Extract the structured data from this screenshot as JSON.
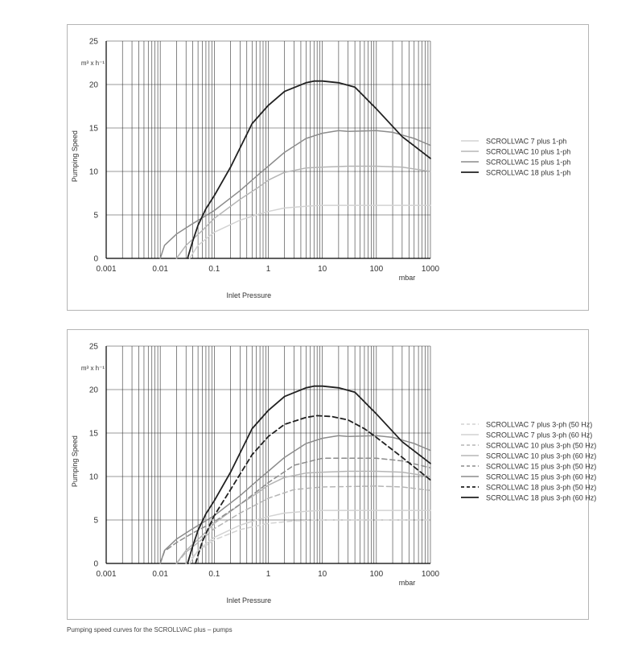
{
  "caption": "Pumping speed curves for the SCROLLVAC plus – pumps",
  "colors": {
    "s7": "#d2d2d2",
    "s10": "#b5b5b5",
    "s15": "#8c8c8c",
    "s18": "#202020",
    "grid": "#333333",
    "frame": "#b5b5b5"
  },
  "chart_data": [
    {
      "type": "line",
      "xscale": "log",
      "xlim": [
        0.001,
        1000
      ],
      "ylim": [
        0,
        25
      ],
      "x_ticks": [
        0.001,
        0.01,
        0.1,
        1,
        10,
        100,
        1000
      ],
      "x_tick_labels": [
        "0.001",
        "0.01",
        "0.1",
        "1",
        "10",
        "100",
        "1000"
      ],
      "y_ticks": [
        0,
        5,
        10,
        15,
        20,
        25
      ],
      "y_tick_labels": [
        "0",
        "5",
        "10",
        "15",
        "20",
        "25"
      ],
      "xlabel": "Inlet Pressure",
      "x_unit": "mbar",
      "ylabel": "Pumping Speed",
      "y_unit": "m³ x h⁻¹",
      "grid": true,
      "legend_position": "right",
      "series": [
        {
          "name": "SCROLLVAC 7 plus 1-ph",
          "color_key": "s7",
          "dash": "solid",
          "points": [
            [
              0.035,
              0
            ],
            [
              0.05,
              1.5
            ],
            [
              0.1,
              3
            ],
            [
              0.3,
              4.4
            ],
            [
              0.6,
              5
            ],
            [
              1,
              5.4
            ],
            [
              2,
              5.8
            ],
            [
              5,
              6
            ],
            [
              10,
              6.1
            ],
            [
              100,
              6.1
            ],
            [
              1000,
              6.1
            ]
          ]
        },
        {
          "name": "SCROLLVAC 10 plus 1-ph",
          "color_key": "s10",
          "dash": "solid",
          "points": [
            [
              0.02,
              0
            ],
            [
              0.03,
              1.5
            ],
            [
              0.06,
              3.2
            ],
            [
              0.1,
              4.6
            ],
            [
              0.3,
              6.8
            ],
            [
              0.7,
              8.3
            ],
            [
              1,
              9
            ],
            [
              2,
              9.9
            ],
            [
              5,
              10.4
            ],
            [
              10,
              10.5
            ],
            [
              30,
              10.6
            ],
            [
              100,
              10.6
            ],
            [
              300,
              10.5
            ],
            [
              1000,
              10
            ]
          ]
        },
        {
          "name": "SCROLLVAC 15 plus 1-ph",
          "color_key": "s15",
          "dash": "solid",
          "points": [
            [
              0.01,
              0
            ],
            [
              0.012,
              1.5
            ],
            [
              0.02,
              2.8
            ],
            [
              0.04,
              4
            ],
            [
              0.1,
              5.5
            ],
            [
              0.3,
              7.8
            ],
            [
              0.7,
              9.8
            ],
            [
              1,
              10.6
            ],
            [
              2,
              12.2
            ],
            [
              5,
              13.8
            ],
            [
              10,
              14.4
            ],
            [
              20,
              14.7
            ],
            [
              30,
              14.6
            ],
            [
              100,
              14.7
            ],
            [
              200,
              14.5
            ],
            [
              500,
              13.8
            ],
            [
              1000,
              13
            ]
          ]
        },
        {
          "name": "SCROLLVAC 18 plus 1-ph",
          "color_key": "s18",
          "dash": "solid",
          "points": [
            [
              0.032,
              0
            ],
            [
              0.04,
              2
            ],
            [
              0.05,
              3.8
            ],
            [
              0.07,
              5.7
            ],
            [
              0.1,
              7.2
            ],
            [
              0.2,
              10.5
            ],
            [
              0.5,
              15.5
            ],
            [
              1,
              17.6
            ],
            [
              2,
              19.2
            ],
            [
              5,
              20.2
            ],
            [
              7,
              20.4
            ],
            [
              10,
              20.4
            ],
            [
              20,
              20.2
            ],
            [
              40,
              19.7
            ],
            [
              100,
              17.2
            ],
            [
              300,
              14
            ],
            [
              1000,
              11.5
            ]
          ]
        }
      ]
    },
    {
      "type": "line",
      "xscale": "log",
      "xlim": [
        0.001,
        1000
      ],
      "ylim": [
        0,
        25
      ],
      "x_ticks": [
        0.001,
        0.01,
        0.1,
        1,
        10,
        100,
        1000
      ],
      "x_tick_labels": [
        "0.001",
        "0.01",
        "0.1",
        "1",
        "10",
        "100",
        "1000"
      ],
      "y_ticks": [
        0,
        5,
        10,
        15,
        20,
        25
      ],
      "y_tick_labels": [
        "0",
        "5",
        "10",
        "15",
        "20",
        "25"
      ],
      "xlabel": "Inlet Pressure",
      "x_unit": "mbar",
      "ylabel": "Pumping Speed",
      "y_unit": "m³ x h⁻¹",
      "grid": true,
      "legend_position": "right",
      "series": [
        {
          "name": "SCROLLVAC 7 plus 3-ph (50 Hz)",
          "color_key": "s7",
          "dash": "dashed",
          "points": [
            [
              0.03,
              0
            ],
            [
              0.05,
              1.4
            ],
            [
              0.1,
              2.7
            ],
            [
              0.3,
              3.9
            ],
            [
              1,
              4.6
            ],
            [
              3,
              4.9
            ],
            [
              10,
              5
            ],
            [
              100,
              5
            ],
            [
              1000,
              5
            ]
          ]
        },
        {
          "name": "SCROLLVAC 7 plus 3-ph (60 Hz)",
          "color_key": "s7",
          "dash": "solid",
          "points": [
            [
              0.035,
              0
            ],
            [
              0.05,
              1.5
            ],
            [
              0.1,
              3
            ],
            [
              0.3,
              4.4
            ],
            [
              0.6,
              5
            ],
            [
              1,
              5.4
            ],
            [
              2,
              5.8
            ],
            [
              5,
              6
            ],
            [
              10,
              6.1
            ],
            [
              100,
              6.1
            ],
            [
              1000,
              6.1
            ]
          ]
        },
        {
          "name": "SCROLLVAC 10 plus 3-ph (50 Hz)",
          "color_key": "s10",
          "dash": "dashed",
          "points": [
            [
              0.02,
              0
            ],
            [
              0.03,
              1.3
            ],
            [
              0.06,
              2.8
            ],
            [
              0.1,
              4
            ],
            [
              0.3,
              5.8
            ],
            [
              1,
              7.5
            ],
            [
              3,
              8.5
            ],
            [
              10,
              8.8
            ],
            [
              100,
              8.9
            ],
            [
              300,
              8.8
            ],
            [
              1000,
              8.4
            ]
          ]
        },
        {
          "name": "SCROLLVAC 10 plus 3-ph (60 Hz)",
          "color_key": "s10",
          "dash": "solid",
          "points": [
            [
              0.02,
              0
            ],
            [
              0.03,
              1.5
            ],
            [
              0.06,
              3.2
            ],
            [
              0.1,
              4.6
            ],
            [
              0.3,
              6.8
            ],
            [
              0.7,
              8.3
            ],
            [
              1,
              9
            ],
            [
              2,
              9.9
            ],
            [
              5,
              10.4
            ],
            [
              10,
              10.5
            ],
            [
              30,
              10.6
            ],
            [
              100,
              10.6
            ],
            [
              300,
              10.5
            ],
            [
              1000,
              10
            ]
          ]
        },
        {
          "name": "SCROLLVAC 15 plus 3-ph (50 Hz)",
          "color_key": "s15",
          "dash": "dashed",
          "points": [
            [
              0.01,
              0
            ],
            [
              0.012,
              1.4
            ],
            [
              0.02,
              2.4
            ],
            [
              0.04,
              3.5
            ],
            [
              0.1,
              4.8
            ],
            [
              0.3,
              6.8
            ],
            [
              1,
              9.3
            ],
            [
              3,
              11.3
            ],
            [
              10,
              12.1
            ],
            [
              30,
              12.1
            ],
            [
              100,
              12.1
            ],
            [
              300,
              11.8
            ],
            [
              1000,
              11
            ]
          ]
        },
        {
          "name": "SCROLLVAC 15 plus 3-ph (60 Hz)",
          "color_key": "s15",
          "dash": "solid",
          "points": [
            [
              0.01,
              0
            ],
            [
              0.012,
              1.5
            ],
            [
              0.02,
              2.8
            ],
            [
              0.04,
              4
            ],
            [
              0.1,
              5.5
            ],
            [
              0.3,
              7.8
            ],
            [
              0.7,
              9.8
            ],
            [
              1,
              10.6
            ],
            [
              2,
              12.2
            ],
            [
              5,
              13.8
            ],
            [
              10,
              14.4
            ],
            [
              20,
              14.7
            ],
            [
              30,
              14.6
            ],
            [
              100,
              14.7
            ],
            [
              200,
              14.5
            ],
            [
              500,
              13.8
            ],
            [
              1000,
              13
            ]
          ]
        },
        {
          "name": "SCROLLVAC 18 plus 3-ph (50 Hz)",
          "color_key": "s18",
          "dash": "dashed",
          "points": [
            [
              0.045,
              0
            ],
            [
              0.06,
              2.5
            ],
            [
              0.1,
              5.5
            ],
            [
              0.2,
              8.5
            ],
            [
              0.5,
              12.5
            ],
            [
              1,
              14.6
            ],
            [
              2,
              16
            ],
            [
              5,
              16.8
            ],
            [
              8,
              17
            ],
            [
              15,
              16.9
            ],
            [
              30,
              16.5
            ],
            [
              60,
              15.5
            ],
            [
              100,
              14.5
            ],
            [
              300,
              12.2
            ],
            [
              1000,
              9.6
            ]
          ]
        },
        {
          "name": "SCROLLVAC 18 plus 3-ph (60 Hz)",
          "color_key": "s18",
          "dash": "solid",
          "points": [
            [
              0.032,
              0
            ],
            [
              0.04,
              2
            ],
            [
              0.05,
              3.8
            ],
            [
              0.07,
              5.7
            ],
            [
              0.1,
              7.2
            ],
            [
              0.2,
              10.5
            ],
            [
              0.5,
              15.5
            ],
            [
              1,
              17.6
            ],
            [
              2,
              19.2
            ],
            [
              5,
              20.2
            ],
            [
              7,
              20.4
            ],
            [
              10,
              20.4
            ],
            [
              20,
              20.2
            ],
            [
              40,
              19.7
            ],
            [
              100,
              17.2
            ],
            [
              300,
              14
            ],
            [
              1000,
              11.5
            ]
          ]
        }
      ]
    }
  ]
}
